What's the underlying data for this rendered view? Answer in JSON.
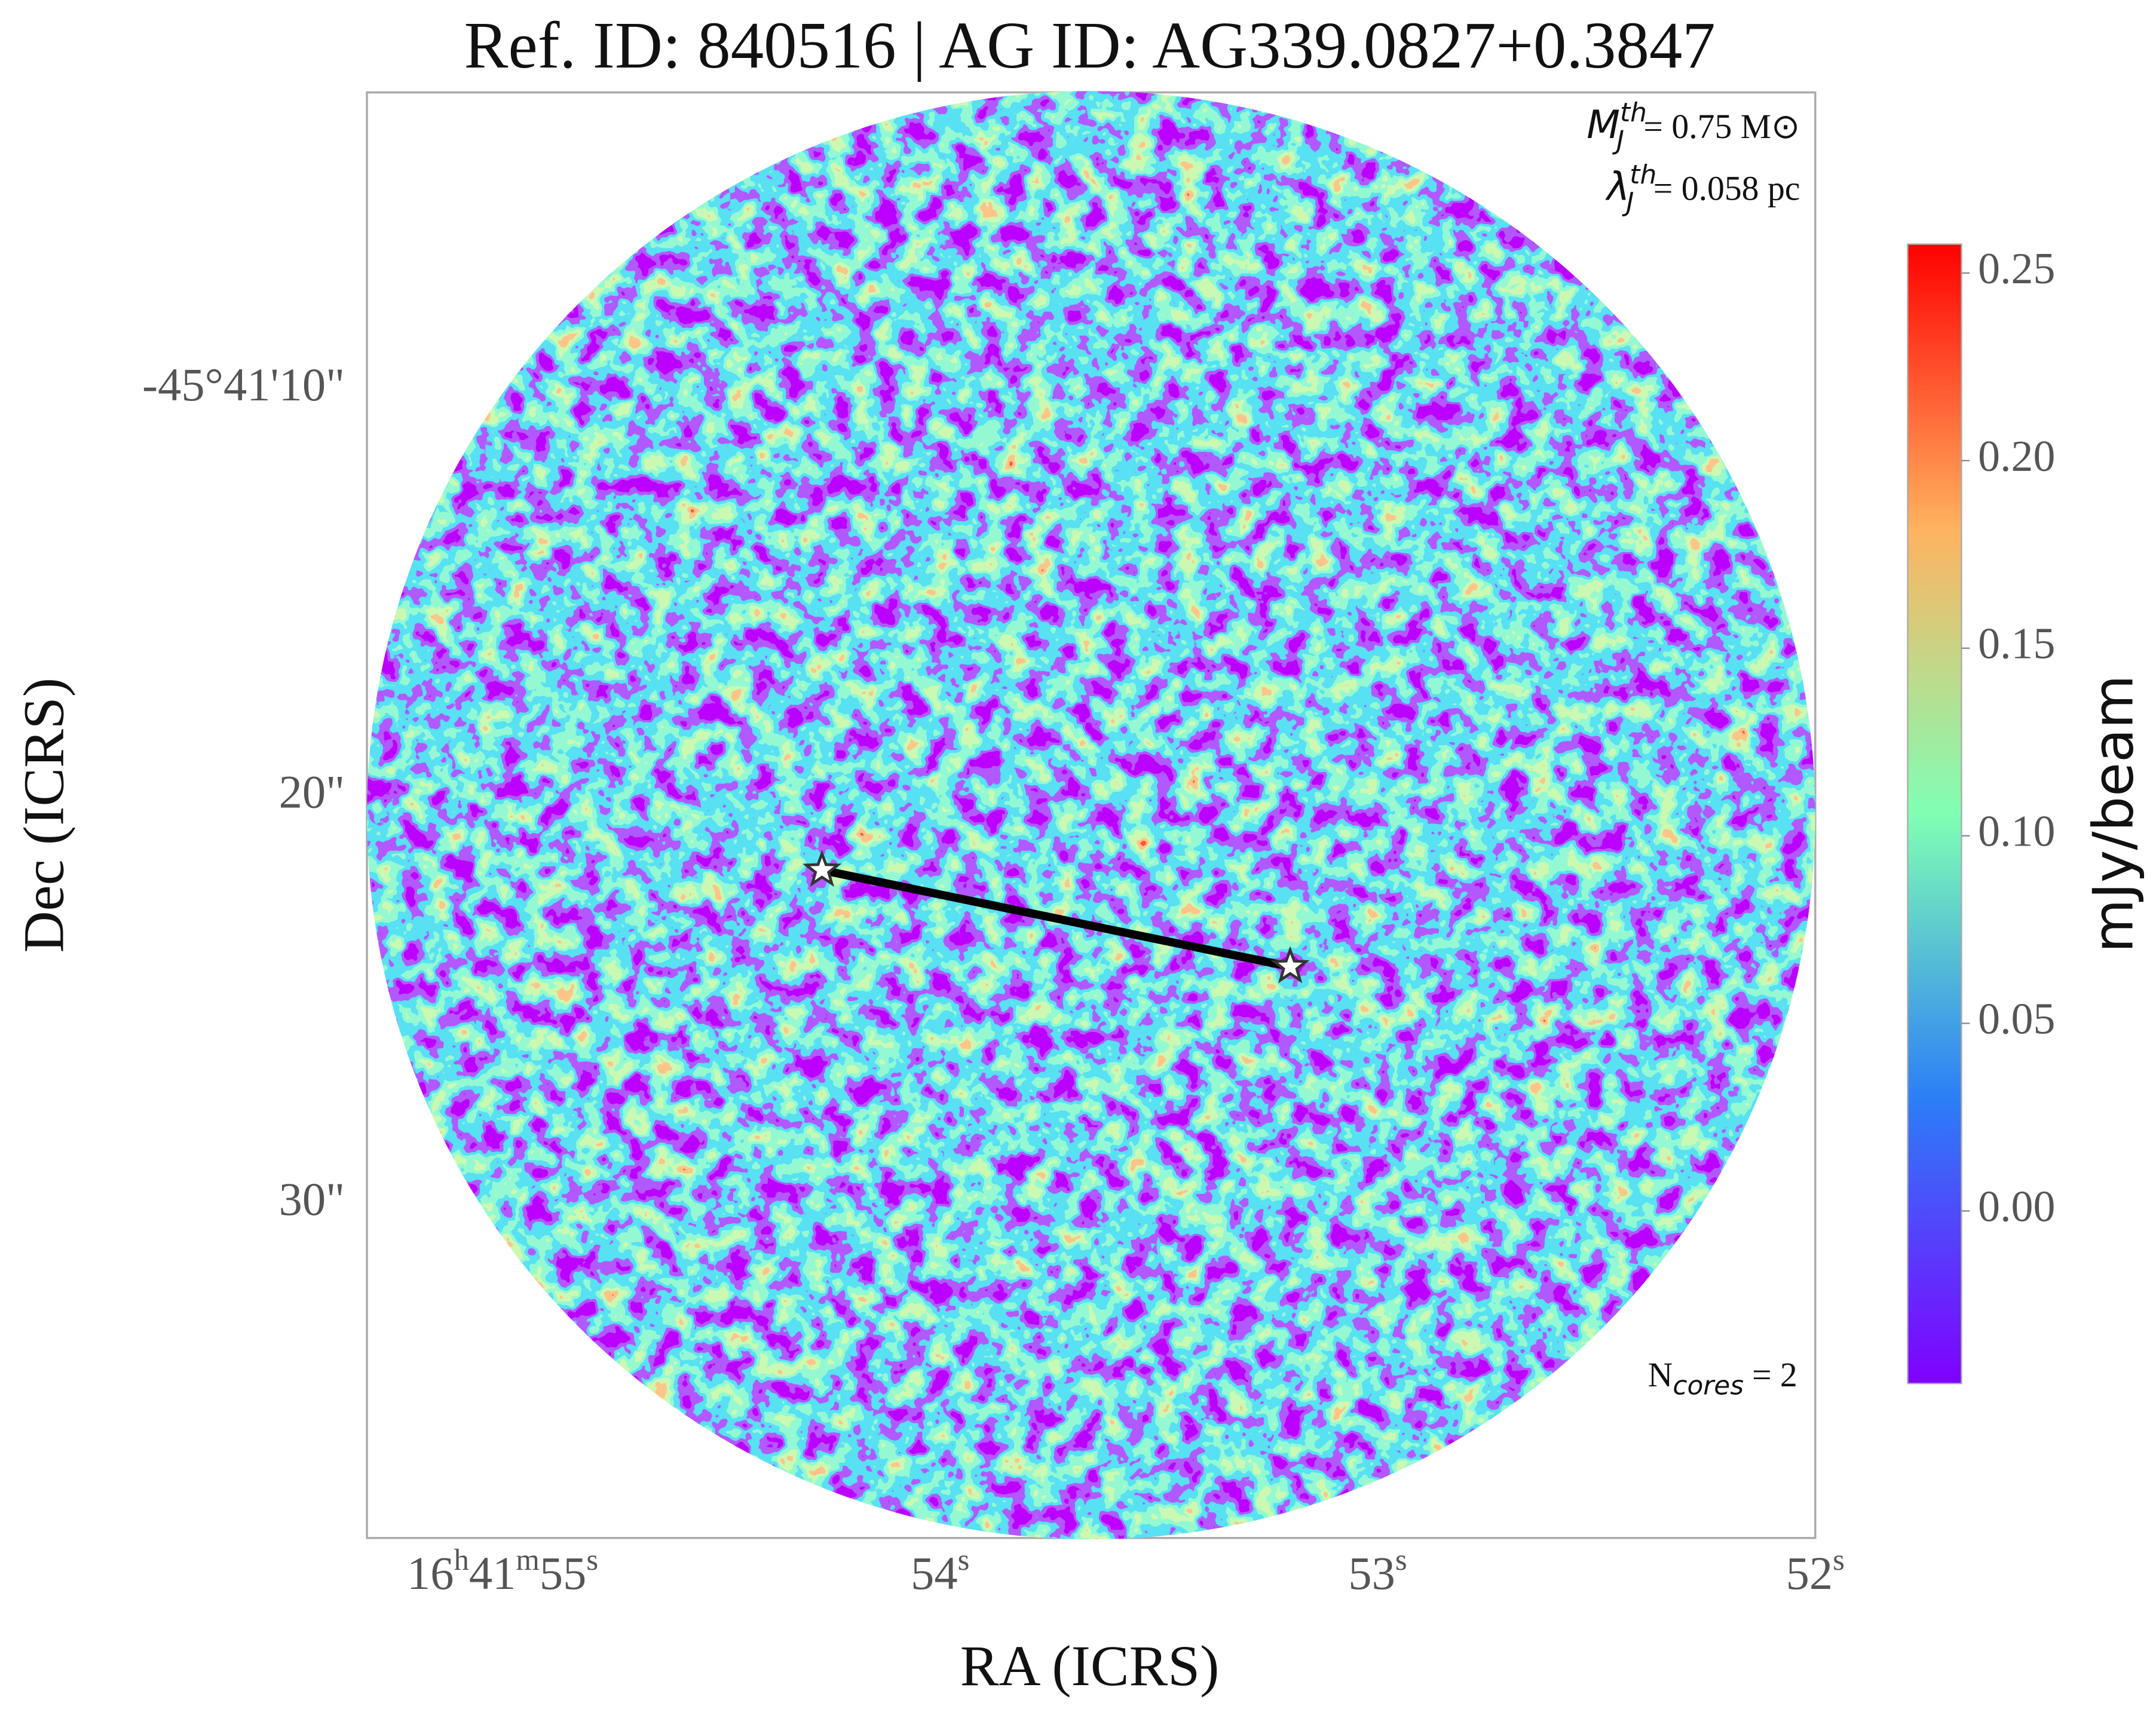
{
  "chart_data": {
    "type": "image",
    "title": "Ref. ID: 840516 | AG ID: AG339.0827+0.3847",
    "xlabel": "RA (ICRS)",
    "ylabel": "Dec (ICRS)",
    "colorbar_label": "mJy/beam",
    "xlim": [
      55.31,
      52.0
    ],
    "xticks": [
      {
        "value": 55,
        "label": [
          "16",
          "h",
          "41",
          "m",
          "55",
          "s"
        ]
      },
      {
        "value": 54,
        "label": [
          "54",
          "s"
        ]
      },
      {
        "value": 53,
        "label": [
          "53",
          "s"
        ]
      },
      {
        "value": 52,
        "label": [
          "52",
          "s"
        ]
      }
    ],
    "ylim": [
      2.7,
      38.2
    ],
    "yticks": [
      {
        "value": 10,
        "label": "-45°41'10\""
      },
      {
        "value": 20,
        "label": "20\""
      },
      {
        "value": 30,
        "label": "30\""
      }
    ],
    "clim": [
      -0.046,
      0.2577
    ],
    "cticks": [
      {
        "value": 0,
        "label": "0.00"
      },
      {
        "value": 0.05,
        "label": "0.05"
      },
      {
        "value": 0.1,
        "label": "0.10"
      },
      {
        "value": 0.15,
        "label": "0.15"
      },
      {
        "value": 0.2,
        "label": "0.20"
      },
      {
        "value": 0.25,
        "label": "0.25"
      }
    ],
    "colormap": "rainbow",
    "cores": {
      "x": [
        54.27,
        53.2
      ],
      "y": [
        21.8,
        24.17
      ]
    },
    "annotations": {
      "jeans_mass": {
        "symbol": "M",
        "sub": "J",
        "sup": "th",
        "text": "= 0.75 M⊙"
      },
      "jeans_length": {
        "symbol": "λ",
        "sub": "J",
        "sup": "th",
        "text": "= 0.058 pc"
      },
      "n_cores": {
        "symbol": "N",
        "sub": "cores",
        "text": "= 2"
      }
    }
  }
}
